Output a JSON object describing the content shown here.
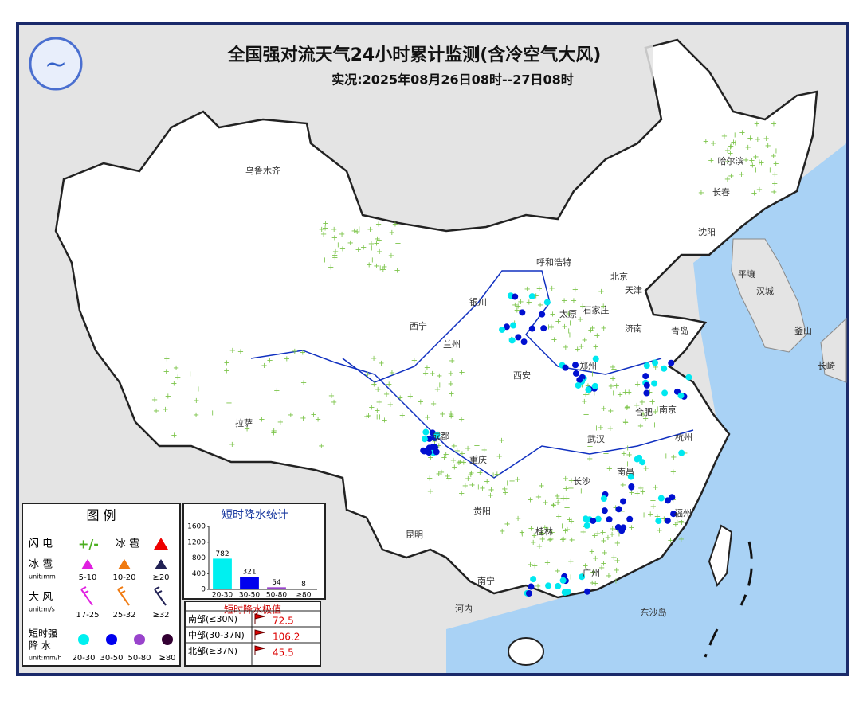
{
  "header": {
    "title": "全国强对流天气24小时累计监测(含冷空气大风)",
    "subtitle": "实况:2025年08月26日08时--27日08时"
  },
  "places": [
    "乌鲁木齐",
    "哈尔滨",
    "长春",
    "沈阳",
    "呼和浩特",
    "北京",
    "天津",
    "石家庄",
    "太原",
    "济南",
    "西宁",
    "兰州",
    "银川",
    "西安",
    "郑州",
    "合肥",
    "南京",
    "杭州",
    "武汉",
    "成都",
    "重庆",
    "长沙",
    "南昌",
    "福州",
    "贵阳",
    "昆明",
    "南宁",
    "桂林",
    "广州",
    "拉萨",
    "平壤",
    "汉城",
    "釜山",
    "长崎",
    "河内",
    "东沙岛",
    "青岛"
  ],
  "legend": {
    "title": "图 例",
    "lightning": "闪 电",
    "hail_top": "冰 雹",
    "hail": {
      "name": "冰 雹",
      "unit": "unit:mm",
      "levels": [
        "5-10",
        "10-20",
        "≥20"
      ]
    },
    "wind": {
      "name": "大 风",
      "unit": "unit:m/s",
      "levels": [
        "17-25",
        "25-32",
        "≥32"
      ]
    },
    "rain": {
      "name_lines": [
        "短时强",
        "降 水"
      ],
      "unit": "unit:mm/h",
      "levels": [
        "20-30",
        "30-50",
        "50-80",
        "≥80"
      ]
    }
  },
  "chart_data": {
    "type": "bar",
    "title": "短时降水统计",
    "categories": [
      "20-30",
      "30-50",
      "50-80",
      "≥80"
    ],
    "values": [
      782,
      321,
      54,
      8
    ],
    "colors": [
      "#00f0f0",
      "#0000ee",
      "#9944cc",
      "#330033"
    ],
    "ylim": [
      0,
      1600
    ],
    "yticks": [
      0,
      400,
      800,
      1200,
      1600
    ]
  },
  "extremes": {
    "title": "短时降水极值",
    "rows": [
      [
        "南部(≤30N)",
        72.5
      ],
      [
        "中部(30-37N)",
        106.2
      ],
      [
        "北部(≥37N)",
        45.5
      ]
    ]
  }
}
